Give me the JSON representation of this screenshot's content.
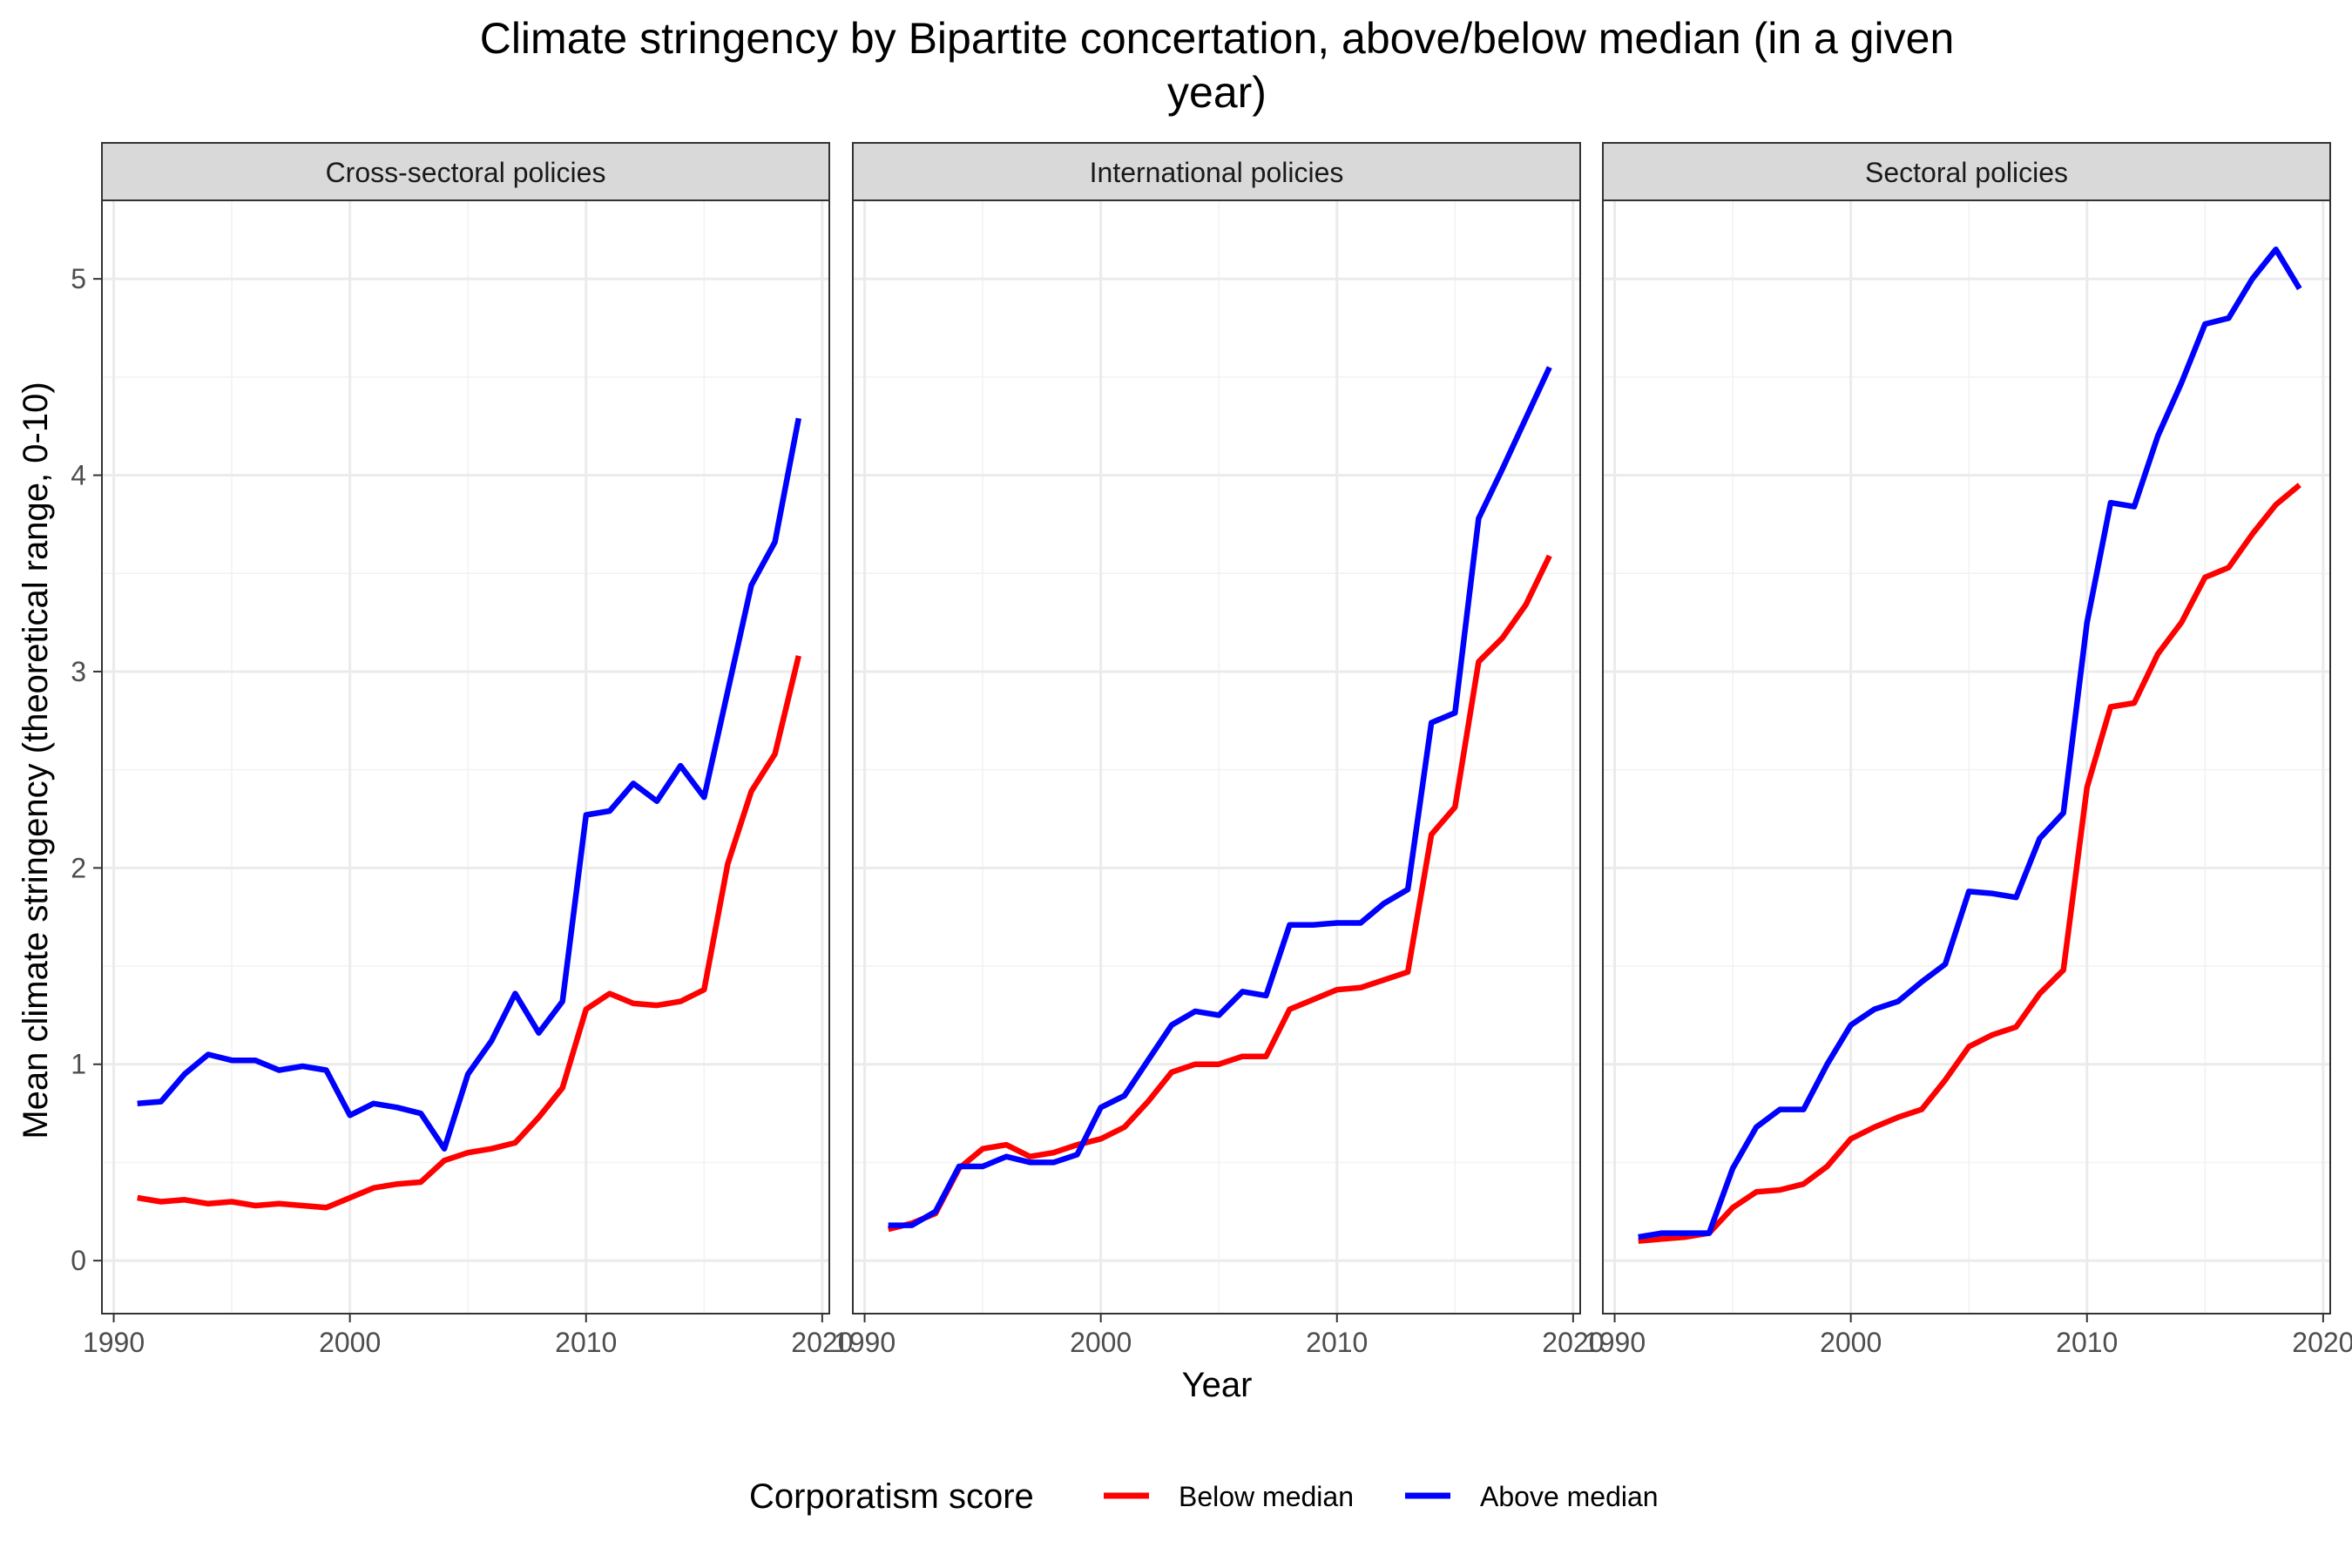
{
  "chart_data": {
    "type": "line",
    "title": "Climate stringency by Bipartite concertation, above/below median (in a given year)",
    "title_lines": [
      "Climate stringency by Bipartite concertation, above/below median (in a given",
      "year)"
    ],
    "xlabel": "Year",
    "ylabel": "Mean climate stringency (theoretical range, 0-10)",
    "xlim": [
      1989.5,
      2020.3
    ],
    "ylim": [
      -0.27,
      5.4
    ],
    "x_ticks": [
      1990,
      2000,
      2010,
      2020
    ],
    "x_tick_labels": [
      "1990",
      "2000",
      "2010",
      "2020"
    ],
    "y_ticks": [
      0,
      1,
      2,
      3,
      4,
      5
    ],
    "y_tick_labels": [
      "0",
      "1",
      "2",
      "3",
      "4",
      "5"
    ],
    "grid": true,
    "legend": {
      "title": "Corporatism score",
      "position": "bottom",
      "entries": [
        "Below median",
        "Above median"
      ],
      "colors": [
        "#ff0000",
        "#0000ff"
      ]
    },
    "x": [
      1991,
      1992,
      1993,
      1994,
      1995,
      1996,
      1997,
      1998,
      1999,
      2000,
      2001,
      2002,
      2003,
      2004,
      2005,
      2006,
      2007,
      2008,
      2009,
      2010,
      2011,
      2012,
      2013,
      2014,
      2015,
      2016,
      2017,
      2018,
      2019
    ],
    "panels": [
      {
        "label": "Cross-sectoral policies",
        "series": [
          {
            "name": "Below median",
            "color": "#ff0000",
            "values": [
              0.32,
              0.3,
              0.31,
              0.29,
              0.3,
              0.28,
              0.29,
              0.28,
              0.27,
              0.32,
              0.37,
              0.39,
              0.4,
              0.51,
              0.55,
              0.57,
              0.6,
              0.73,
              0.88,
              1.28,
              1.36,
              1.31,
              1.3,
              1.32,
              1.38,
              2.02,
              2.39,
              2.58,
              3.08
            ]
          },
          {
            "name": "Above median",
            "color": "#0000ff",
            "values": [
              0.8,
              0.81,
              0.95,
              1.05,
              1.02,
              1.02,
              0.97,
              0.99,
              0.97,
              0.74,
              0.8,
              0.78,
              0.75,
              0.57,
              0.95,
              1.12,
              1.36,
              1.16,
              1.32,
              2.27,
              2.29,
              2.43,
              2.34,
              2.52,
              2.36,
              2.9,
              3.44,
              3.66,
              4.29
            ]
          }
        ]
      },
      {
        "label": "International policies",
        "series": [
          {
            "name": "Below median",
            "color": "#ff0000",
            "values": [
              0.16,
              0.19,
              0.24,
              0.47,
              0.57,
              0.59,
              0.53,
              0.55,
              0.59,
              0.62,
              0.68,
              0.81,
              0.96,
              1.0,
              1.0,
              1.04,
              1.04,
              1.28,
              1.33,
              1.38,
              1.39,
              1.43,
              1.47,
              2.17,
              2.31,
              3.05,
              3.17,
              3.34,
              3.59
            ]
          },
          {
            "name": "Above median",
            "color": "#0000ff",
            "values": [
              0.18,
              0.18,
              0.25,
              0.48,
              0.48,
              0.53,
              0.5,
              0.5,
              0.54,
              0.78,
              0.84,
              1.02,
              1.2,
              1.27,
              1.25,
              1.37,
              1.35,
              1.71,
              1.71,
              1.72,
              1.72,
              1.82,
              1.89,
              2.74,
              2.79,
              3.78,
              4.03,
              4.29,
              4.55
            ]
          }
        ]
      },
      {
        "label": "Sectoral policies",
        "series": [
          {
            "name": "Below median",
            "color": "#ff0000",
            "values": [
              0.1,
              0.11,
              0.12,
              0.14,
              0.27,
              0.35,
              0.36,
              0.39,
              0.48,
              0.62,
              0.68,
              0.73,
              0.77,
              0.92,
              1.09,
              1.15,
              1.19,
              1.36,
              1.48,
              2.41,
              2.82,
              2.84,
              3.09,
              3.25,
              3.48,
              3.53,
              3.7,
              3.85,
              3.95
            ]
          },
          {
            "name": "Above median",
            "color": "#0000ff",
            "values": [
              0.12,
              0.14,
              0.14,
              0.14,
              0.47,
              0.68,
              0.77,
              0.77,
              1.0,
              1.2,
              1.28,
              1.32,
              1.42,
              1.51,
              1.88,
              1.87,
              1.85,
              2.15,
              2.28,
              3.25,
              3.86,
              3.84,
              4.2,
              4.47,
              4.77,
              4.8,
              5.0,
              5.15,
              4.95
            ]
          }
        ]
      }
    ]
  }
}
